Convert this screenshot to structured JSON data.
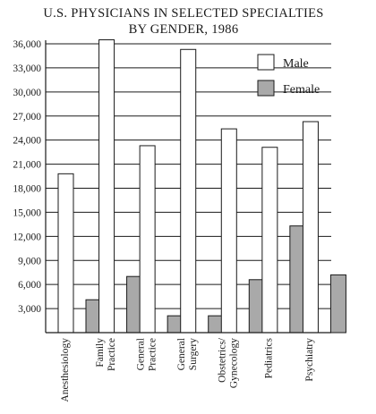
{
  "chart_data": {
    "type": "bar",
    "title": "U.S. PHYSICIANS IN SELECTED SPECIALTIES",
    "subtitle": "BY GENDER, 1986",
    "categories": [
      [
        "Anesthesiology"
      ],
      [
        "Family",
        "Practice"
      ],
      [
        "General",
        "Practice"
      ],
      [
        "General",
        "Surgery"
      ],
      [
        "Obstetrics/",
        "Gynecology"
      ],
      [
        "Pediatrics"
      ],
      [
        "Psychiatry"
      ]
    ],
    "series": [
      {
        "name": "Male",
        "color": "#ffffff",
        "values": [
          19800,
          36500,
          23300,
          35300,
          25400,
          23100,
          26300
        ]
      },
      {
        "name": "Female",
        "color": "#a9a9a9",
        "values": [
          4100,
          7000,
          2100,
          2100,
          6600,
          13300,
          7200
        ]
      }
    ],
    "ylim": [
      0,
      36000
    ],
    "yticks": [
      3000,
      6000,
      9000,
      12000,
      15000,
      18000,
      21000,
      24000,
      27000,
      30000,
      33000,
      36000
    ],
    "ytick_labels": [
      "3,000",
      "6,000",
      "9,000",
      "12,000",
      "15,000",
      "18,000",
      "21,000",
      "24,000",
      "27,000",
      "30,000",
      "33,000",
      "36,000"
    ],
    "grid": true,
    "legend_position": "top-right",
    "xlabel": "",
    "ylabel": ""
  }
}
